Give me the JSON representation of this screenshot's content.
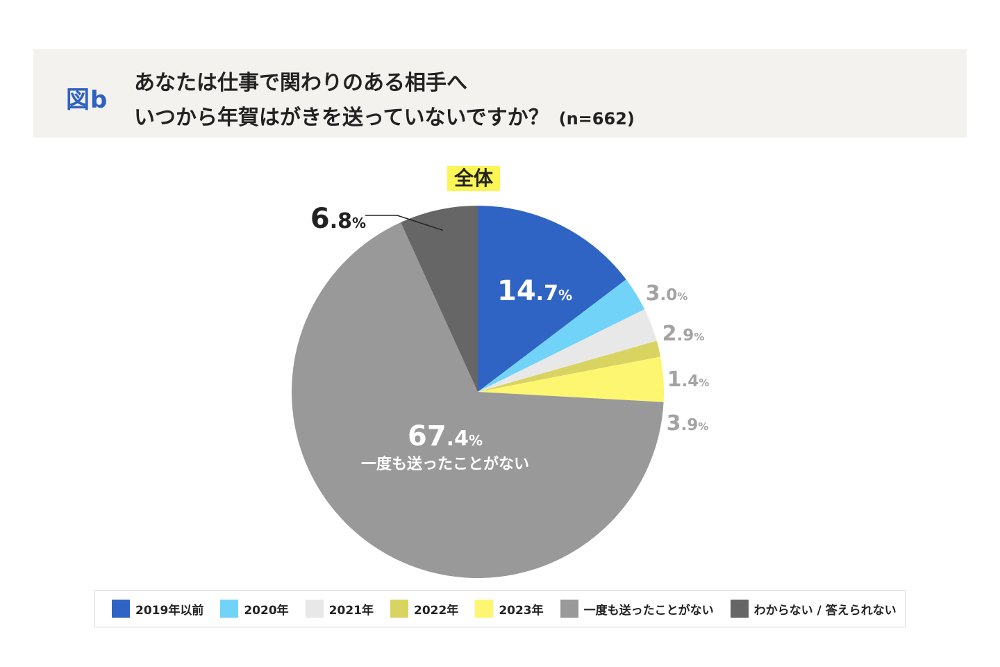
{
  "header": {
    "fig_label": "図b",
    "title_line1": "あなたは仕事で関わりのある相手へ",
    "title_line2": "いつから年賀はがきを送っていないですか？",
    "sample_size": "(n=662)"
  },
  "chart_data": {
    "type": "pie",
    "title": "全体",
    "start": "top",
    "direction": "clockwise",
    "slices": [
      {
        "label": "2019年以前",
        "value": 14.7,
        "value_text": "14.7",
        "color": "#2f64c4"
      },
      {
        "label": "2020年",
        "value": 3.0,
        "value_text": "3.0",
        "color": "#72d3f8"
      },
      {
        "label": "2021年",
        "value": 2.9,
        "value_text": "2.9",
        "color": "#e8e8e8"
      },
      {
        "label": "2022年",
        "value": 1.4,
        "value_text": "1.4",
        "color": "#d9d462"
      },
      {
        "label": "2023年",
        "value": 3.9,
        "value_text": "3.9",
        "color": "#fcf670"
      },
      {
        "label": "一度も送ったことがない",
        "value": 67.4,
        "value_text": "67.4",
        "color": "#999999",
        "inner_caption": "一度も送ったことがない"
      },
      {
        "label": "わからない / 答えられない",
        "value": 6.8,
        "value_text": "6.8",
        "color": "#666666"
      }
    ],
    "percent_sign": "%",
    "legend_placement": "bottom"
  }
}
